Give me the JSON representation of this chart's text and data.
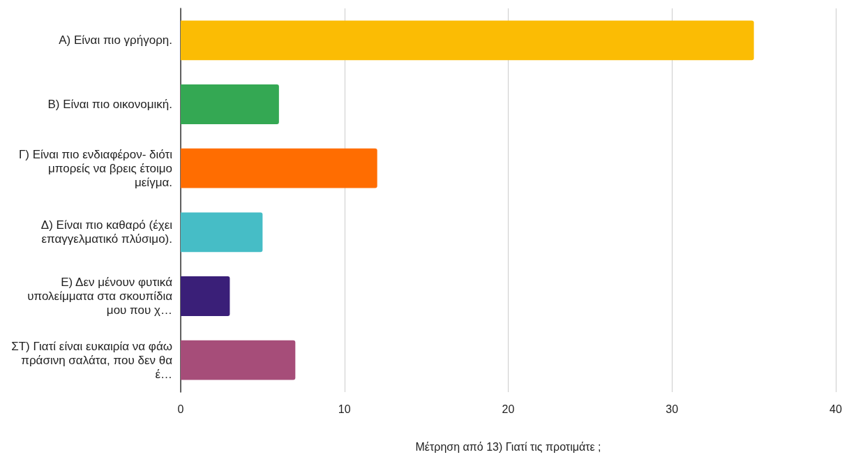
{
  "chart_data": {
    "type": "bar",
    "orientation": "horizontal",
    "xlabel": "Μέτρηση από 13) Γιατί τις προτιμάτε ;",
    "categories": [
      "Α) Είναι πιο γρήγορη.",
      "Β) Είναι πιο οικονομική.",
      "Γ) Είναι πιο ενδιαφέρον- διότι μπορείς να βρεις έτοιμο μείγμα.",
      "Δ) Είναι πιο καθαρό (έχει επαγγελματικό πλύσιμο).",
      "Ε) Δεν μένουν φυτικά υπολείμματα στα σκουπίδια μου που χ…",
      "ΣΤ) Γιατί είναι ευκαιρία να φάω πράσινη σαλάτα, που δεν θα έ…"
    ],
    "values": [
      35,
      6,
      12,
      5,
      3,
      7
    ],
    "colors": [
      "#fbbc04",
      "#34a853",
      "#ff6d01",
      "#46bdc6",
      "#3a1f78",
      "#a64d79"
    ],
    "xlim": [
      0,
      40
    ],
    "xticks": [
      0,
      10,
      20,
      30,
      40
    ],
    "grid": "x"
  }
}
